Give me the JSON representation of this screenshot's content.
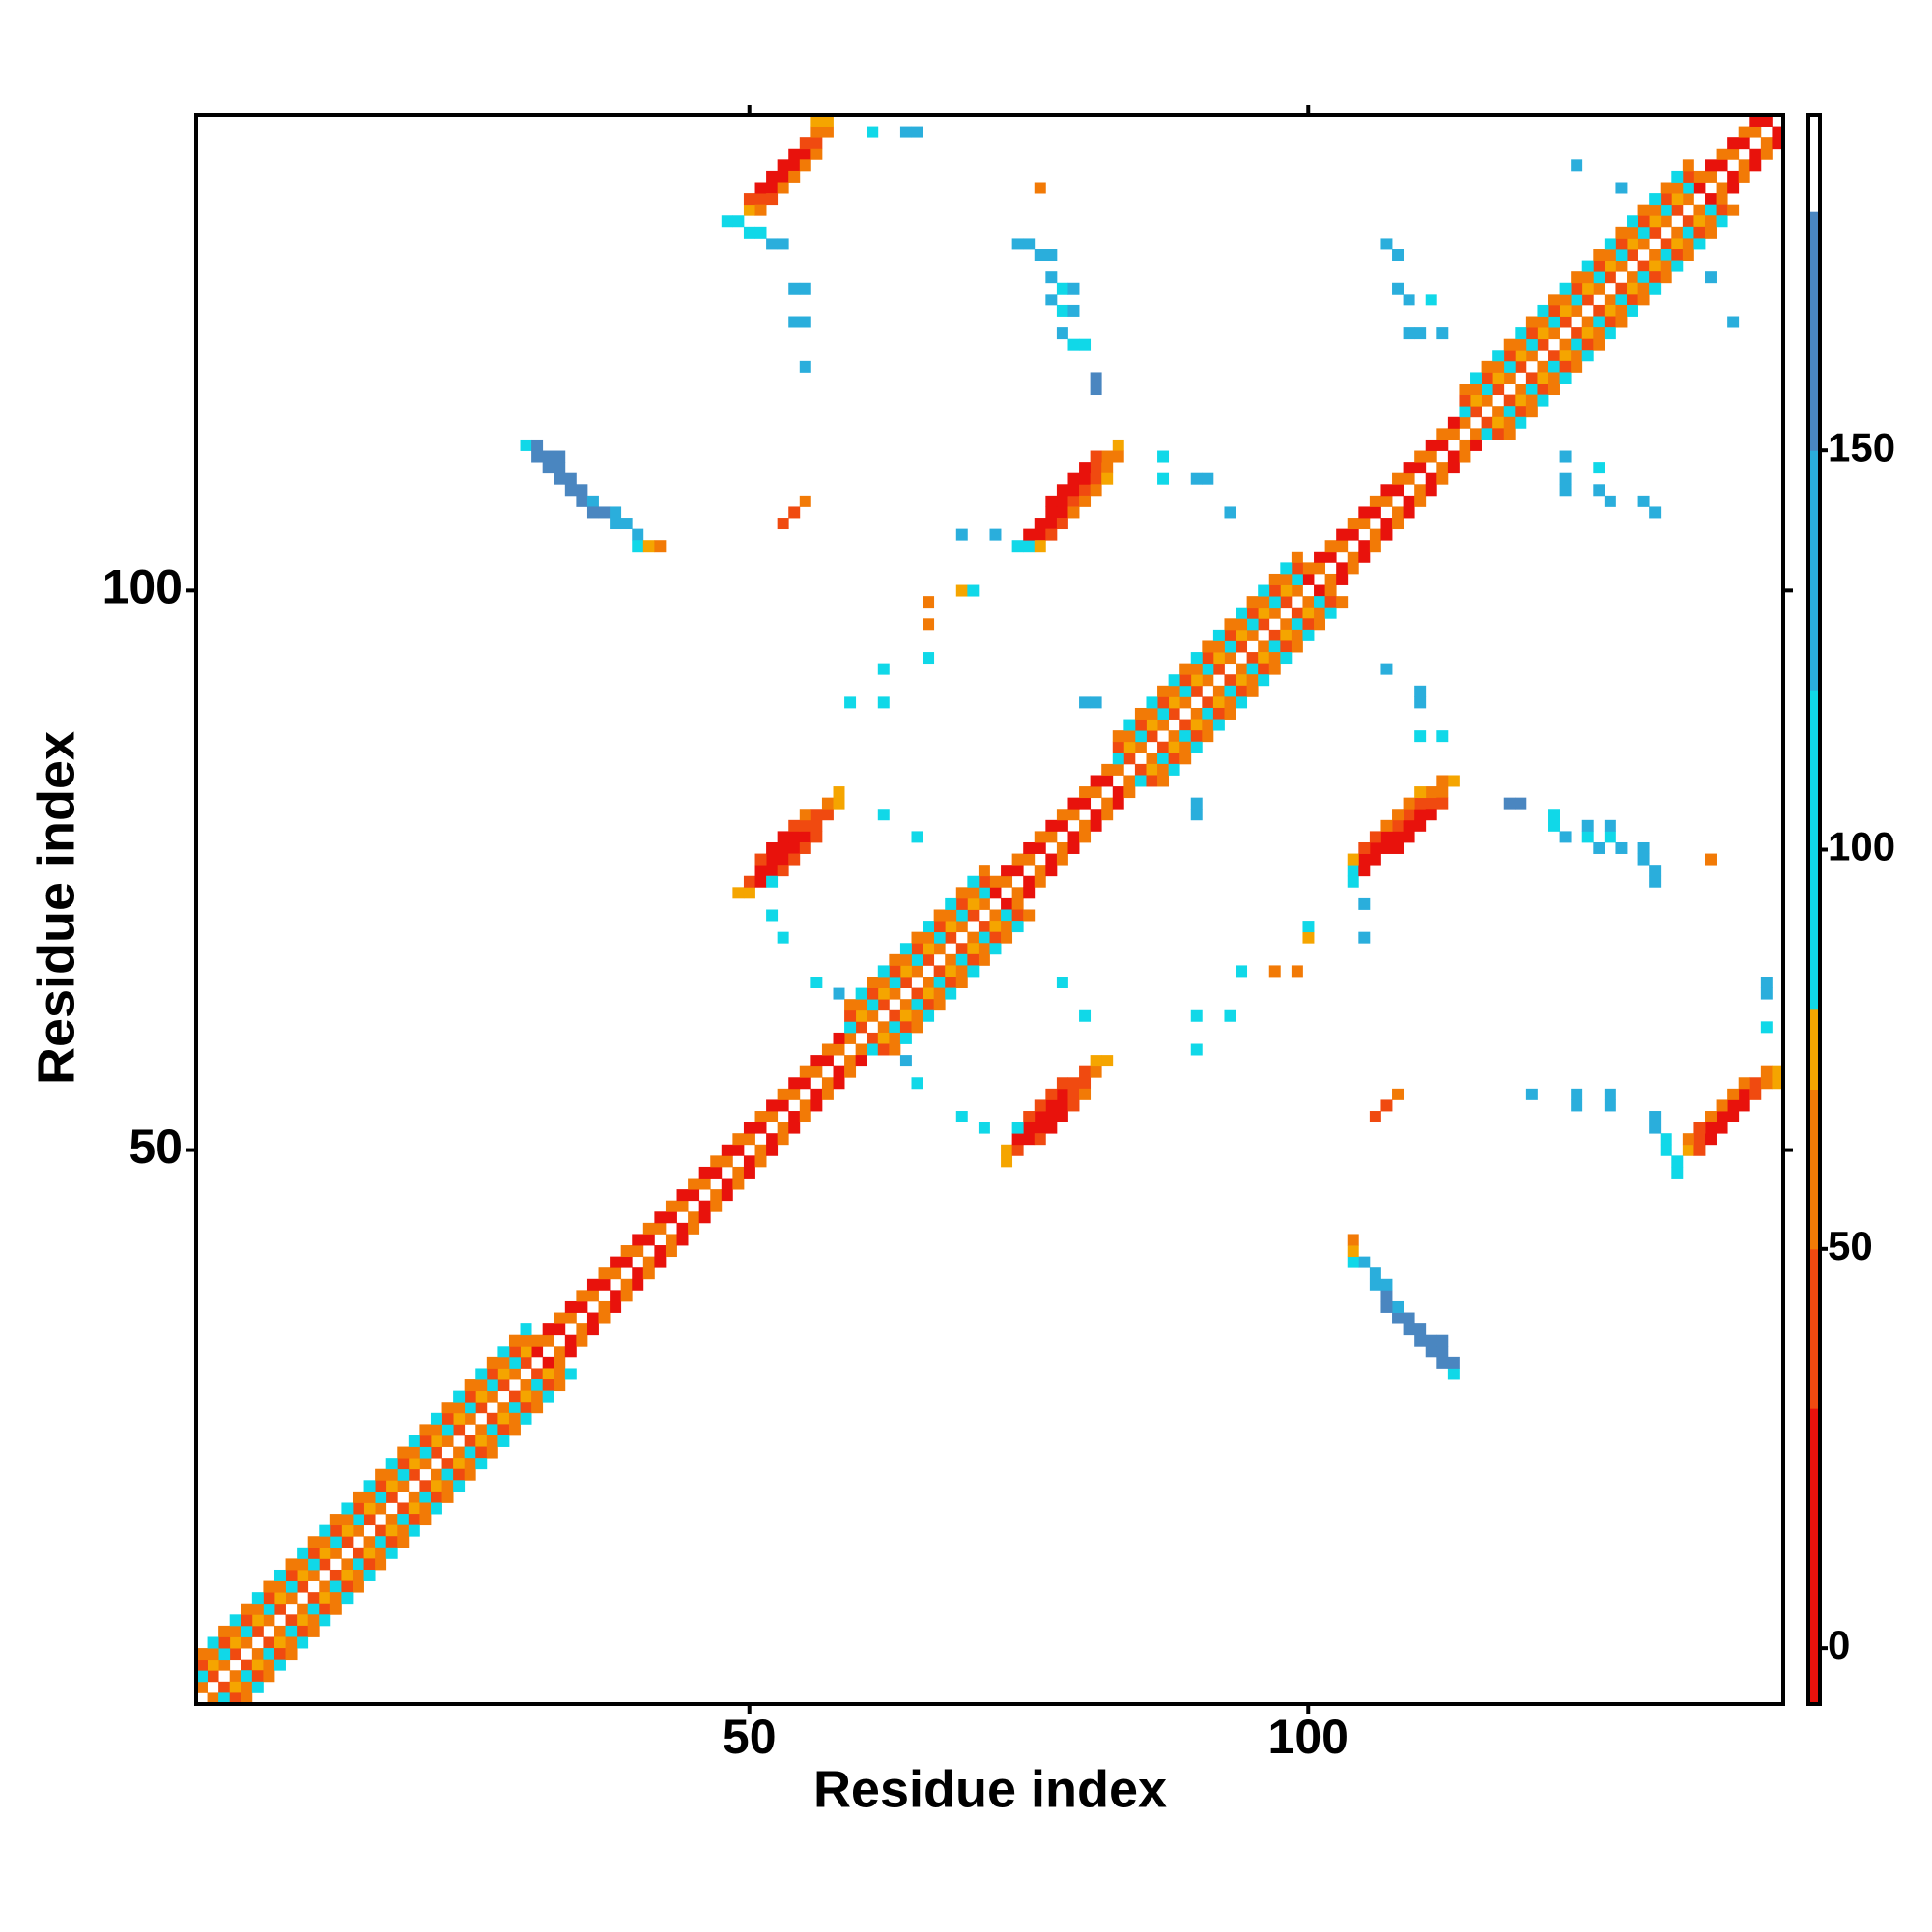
{
  "chart_data": {
    "type": "heatmap",
    "x_label": "Residue index",
    "y_label": "Residue index",
    "xlim": [
      0.5,
      142.5
    ],
    "ylim": [
      0.5,
      142.5
    ],
    "xticks": [
      50,
      100
    ],
    "yticks": [
      50,
      100
    ],
    "colorbar": {
      "lim": [
        -7,
        192
      ],
      "ticks": [
        0,
        50,
        100,
        150
      ],
      "levels": [
        {
          "from": -7,
          "to": 30,
          "color": "#e8120c"
        },
        {
          "from": 30,
          "to": 50,
          "color": "#f04a10"
        },
        {
          "from": 50,
          "to": 70,
          "color": "#f27a06"
        },
        {
          "from": 70,
          "to": 80,
          "color": "#f5a500"
        },
        {
          "from": 80,
          "to": 120,
          "color": "#10d8e8"
        },
        {
          "from": 120,
          "to": 150,
          "color": "#2aaedc"
        },
        {
          "from": 150,
          "to": 180,
          "color": "#4a86c0"
        },
        {
          "from": 180,
          "to": 192,
          "color": "#ffffff"
        }
      ]
    },
    "diagonal_bands": [
      [
        60,
        40,
        60,
        40,
        60,
        40,
        60,
        40,
        60,
        40,
        60,
        40,
        60,
        40,
        60,
        40,
        60,
        40,
        60,
        40,
        60,
        40,
        60,
        40,
        60,
        40,
        60,
        40,
        60,
        40,
        10,
        60,
        10,
        60,
        10,
        60,
        10,
        60,
        10,
        60,
        10,
        60,
        10,
        60,
        10,
        60,
        10,
        60,
        10,
        60,
        10,
        60,
        10,
        60,
        10,
        60,
        10,
        60,
        60,
        40,
        60,
        40,
        60,
        40,
        60,
        40,
        60,
        40,
        60,
        40,
        60,
        10,
        60,
        10,
        60,
        10,
        60,
        10,
        60,
        10,
        60,
        10,
        60,
        40,
        60,
        40,
        60,
        40,
        60,
        40,
        60,
        40,
        60,
        40,
        60,
        40,
        60,
        40,
        60,
        10,
        60,
        10,
        60,
        10,
        60,
        10,
        60,
        10,
        60,
        10,
        60,
        10,
        60,
        60,
        40,
        60,
        40,
        60,
        40,
        60,
        40,
        60,
        40,
        60,
        40,
        60,
        40,
        60,
        40,
        60,
        40,
        60,
        40,
        60,
        10,
        60,
        10,
        60,
        10,
        60,
        10
      ],
      [
        90,
        75,
        90,
        75,
        90,
        75,
        90,
        75,
        90,
        75,
        90,
        75,
        90,
        75,
        90,
        75,
        90,
        75,
        90,
        75,
        90,
        75,
        90,
        75,
        90,
        75,
        90,
        75,
        90,
        75,
        60,
        10,
        60,
        10,
        60,
        10,
        60,
        10,
        60,
        10,
        60,
        10,
        60,
        10,
        60,
        10,
        60,
        10,
        60,
        10,
        60,
        10,
        60,
        10,
        60,
        10,
        60,
        10,
        90,
        75,
        90,
        75,
        90,
        75,
        90,
        75,
        90,
        75,
        90,
        75,
        90,
        60,
        10,
        60,
        10,
        60,
        10,
        60,
        10,
        60,
        10,
        60,
        90,
        75,
        90,
        75,
        90,
        75,
        90,
        75,
        90,
        75,
        90,
        75,
        90,
        75,
        90,
        75,
        90,
        60,
        10,
        60,
        10,
        60,
        10,
        60,
        10,
        60,
        10,
        60,
        10,
        60,
        10,
        90,
        75,
        90,
        75,
        90,
        75,
        90,
        75,
        90,
        75,
        90,
        75,
        90,
        75,
        90,
        75,
        90,
        75,
        90,
        75,
        90,
        60,
        10,
        60,
        10,
        60,
        10
      ],
      [
        40,
        60,
        40,
        60,
        40,
        60,
        40,
        60,
        40,
        60,
        40,
        60,
        40,
        60,
        40,
        60,
        40,
        60,
        40,
        60,
        40,
        60,
        40,
        60,
        40,
        60,
        40,
        60,
        40,
        60,
        null,
        null,
        null,
        null,
        null,
        null,
        null,
        null,
        null,
        null,
        null,
        null,
        null,
        null,
        null,
        null,
        null,
        null,
        null,
        null,
        null,
        null,
        null,
        null,
        null,
        null,
        null,
        null,
        40,
        60,
        40,
        60,
        40,
        60,
        40,
        60,
        40,
        60,
        40,
        60,
        40,
        null,
        null,
        null,
        null,
        null,
        null,
        null,
        null,
        null,
        null,
        null,
        40,
        60,
        40,
        60,
        40,
        60,
        40,
        60,
        40,
        60,
        40,
        60,
        40,
        60,
        40,
        60,
        40,
        null,
        null,
        null,
        null,
        null,
        null,
        null,
        null,
        null,
        null,
        null,
        null,
        null,
        null,
        40,
        60,
        40,
        60,
        40,
        60,
        40,
        60,
        40,
        60,
        40,
        60,
        40,
        60,
        40,
        60,
        40,
        60,
        40,
        60,
        40,
        null,
        null,
        null,
        null,
        null
      ],
      [
        60,
        90,
        60,
        90,
        60,
        90,
        60,
        90,
        60,
        90,
        60,
        90,
        60,
        90,
        60,
        90,
        60,
        90,
        60,
        90,
        60,
        90,
        60,
        90,
        60,
        90,
        60,
        90,
        60,
        90,
        null,
        null,
        null,
        null,
        null,
        null,
        null,
        null,
        null,
        null,
        null,
        null,
        null,
        null,
        null,
        null,
        null,
        null,
        null,
        null,
        null,
        null,
        null,
        null,
        null,
        null,
        null,
        null,
        60,
        90,
        60,
        90,
        60,
        90,
        60,
        90,
        60,
        90,
        60,
        90,
        60,
        null,
        null,
        null,
        null,
        null,
        null,
        null,
        null,
        null,
        null,
        null,
        60,
        90,
        60,
        90,
        60,
        90,
        60,
        90,
        60,
        90,
        60,
        90,
        60,
        90,
        60,
        90,
        60,
        null,
        null,
        null,
        null,
        null,
        null,
        null,
        null,
        null,
        null,
        null,
        null,
        null,
        null,
        60,
        90,
        60,
        90,
        60,
        90,
        60,
        90,
        60,
        90,
        60,
        90,
        60,
        90,
        60,
        90,
        60,
        90,
        60,
        90,
        60,
        null,
        null,
        null,
        null
      ]
    ],
    "contacts": [
      [
        50,
        134,
        75
      ],
      [
        50,
        135,
        40
      ],
      [
        51,
        135,
        40
      ],
      [
        51,
        136,
        10
      ],
      [
        51,
        134,
        60
      ],
      [
        52,
        136,
        10
      ],
      [
        52,
        137,
        10
      ],
      [
        52,
        135,
        40
      ],
      [
        53,
        137,
        10
      ],
      [
        53,
        138,
        10
      ],
      [
        53,
        136,
        60
      ],
      [
        54,
        138,
        10
      ],
      [
        54,
        139,
        10
      ],
      [
        54,
        137,
        60
      ],
      [
        55,
        139,
        10
      ],
      [
        55,
        140,
        40
      ],
      [
        55,
        138,
        60
      ],
      [
        56,
        140,
        40
      ],
      [
        56,
        141,
        60
      ],
      [
        56,
        139,
        60
      ],
      [
        57,
        141,
        60
      ],
      [
        57,
        142,
        75
      ],
      [
        56,
        142,
        75
      ],
      [
        48,
        133,
        90
      ],
      [
        49,
        133,
        90
      ],
      [
        50,
        132,
        90
      ],
      [
        51,
        132,
        90
      ],
      [
        52,
        131,
        130
      ],
      [
        53,
        131,
        130
      ],
      [
        54,
        127,
        130
      ],
      [
        55,
        127,
        130
      ],
      [
        54,
        124,
        130
      ],
      [
        55,
        124,
        130
      ],
      [
        55,
        120,
        130
      ],
      [
        61,
        141,
        90
      ],
      [
        64,
        141,
        130
      ],
      [
        65,
        141,
        130
      ],
      [
        30,
        113,
        90
      ],
      [
        31,
        113,
        165
      ],
      [
        31,
        112,
        165
      ],
      [
        32,
        112,
        165
      ],
      [
        32,
        111,
        165
      ],
      [
        33,
        112,
        165
      ],
      [
        33,
        111,
        165
      ],
      [
        33,
        110,
        165
      ],
      [
        34,
        110,
        165
      ],
      [
        34,
        109,
        165
      ],
      [
        35,
        109,
        165
      ],
      [
        35,
        108,
        165
      ],
      [
        36,
        108,
        130
      ],
      [
        36,
        107,
        165
      ],
      [
        37,
        107,
        165
      ],
      [
        38,
        107,
        130
      ],
      [
        38,
        106,
        130
      ],
      [
        39,
        106,
        130
      ],
      [
        40,
        105,
        130
      ],
      [
        40,
        104,
        90
      ],
      [
        41,
        104,
        75
      ],
      [
        42,
        104,
        60
      ],
      [
        74,
        104,
        90
      ],
      [
        75,
        104,
        90
      ],
      [
        75,
        105,
        10
      ],
      [
        76,
        105,
        10
      ],
      [
        76,
        106,
        10
      ],
      [
        77,
        106,
        10
      ],
      [
        77,
        107,
        10
      ],
      [
        78,
        107,
        10
      ],
      [
        78,
        108,
        10
      ],
      [
        79,
        108,
        40
      ],
      [
        79,
        109,
        10
      ],
      [
        80,
        109,
        40
      ],
      [
        80,
        110,
        10
      ],
      [
        81,
        110,
        40
      ],
      [
        81,
        111,
        40
      ],
      [
        82,
        111,
        60
      ],
      [
        82,
        112,
        60
      ],
      [
        83,
        113,
        75
      ],
      [
        83,
        112,
        60
      ],
      [
        76,
        104,
        75
      ],
      [
        77,
        105,
        40
      ],
      [
        78,
        106,
        40
      ],
      [
        79,
        107,
        60
      ],
      [
        80,
        108,
        60
      ],
      [
        81,
        109,
        60
      ],
      [
        82,
        110,
        75
      ],
      [
        77,
        108,
        10
      ],
      [
        78,
        109,
        10
      ],
      [
        79,
        110,
        10
      ],
      [
        80,
        111,
        10
      ],
      [
        81,
        112,
        40
      ],
      [
        74,
        131,
        130
      ],
      [
        75,
        131,
        130
      ],
      [
        76,
        130,
        130
      ],
      [
        77,
        130,
        130
      ],
      [
        77,
        128,
        130
      ],
      [
        78,
        127,
        90
      ],
      [
        79,
        127,
        130
      ],
      [
        77,
        126,
        130
      ],
      [
        78,
        125,
        90
      ],
      [
        79,
        125,
        130
      ],
      [
        78,
        123,
        130
      ],
      [
        79,
        122,
        90
      ],
      [
        80,
        122,
        90
      ],
      [
        81,
        119,
        165
      ],
      [
        81,
        118,
        165
      ],
      [
        76,
        136,
        60
      ],
      [
        49,
        73,
        75
      ],
      [
        50,
        73,
        75
      ],
      [
        50,
        74,
        40
      ],
      [
        51,
        74,
        10
      ],
      [
        51,
        75,
        10
      ],
      [
        52,
        75,
        10
      ],
      [
        52,
        76,
        10
      ],
      [
        53,
        76,
        10
      ],
      [
        53,
        77,
        10
      ],
      [
        54,
        77,
        10
      ],
      [
        54,
        78,
        10
      ],
      [
        55,
        78,
        10
      ],
      [
        55,
        79,
        40
      ],
      [
        56,
        79,
        40
      ],
      [
        56,
        80,
        40
      ],
      [
        57,
        80,
        40
      ],
      [
        57,
        81,
        60
      ],
      [
        58,
        81,
        75
      ],
      [
        58,
        82,
        75
      ],
      [
        51,
        76,
        40
      ],
      [
        52,
        77,
        10
      ],
      [
        53,
        78,
        10
      ],
      [
        54,
        79,
        40
      ],
      [
        55,
        80,
        60
      ],
      [
        52,
        74,
        90
      ],
      [
        53,
        75,
        40
      ],
      [
        54,
        76,
        40
      ],
      [
        55,
        77,
        40
      ],
      [
        56,
        78,
        40
      ],
      [
        52,
        71,
        90
      ],
      [
        53,
        69,
        90
      ],
      [
        56,
        65,
        90
      ],
      [
        58,
        64,
        130
      ],
      [
        65,
        78,
        90
      ],
      [
        62,
        80,
        90
      ],
      [
        59,
        90,
        90
      ],
      [
        62,
        90,
        90
      ],
      [
        62,
        93,
        90
      ],
      [
        66,
        94,
        90
      ],
      [
        66,
        97,
        60
      ],
      [
        66,
        99,
        60
      ],
      [
        69,
        100,
        75
      ],
      [
        70,
        100,
        90
      ],
      [
        69,
        105,
        130
      ],
      [
        72,
        105,
        130
      ],
      [
        53,
        106,
        40
      ],
      [
        54,
        107,
        40
      ],
      [
        55,
        108,
        60
      ],
      [
        87,
        112,
        90
      ],
      [
        87,
        110,
        90
      ],
      [
        90,
        110,
        130
      ],
      [
        91,
        110,
        130
      ],
      [
        93,
        107,
        130
      ],
      [
        80,
        90,
        130
      ],
      [
        81,
        90,
        130
      ],
      [
        107,
        131,
        130
      ],
      [
        108,
        130,
        130
      ],
      [
        108,
        127,
        130
      ],
      [
        109,
        126,
        130
      ],
      [
        111,
        126,
        90
      ],
      [
        109,
        123,
        130
      ],
      [
        110,
        123,
        130
      ],
      [
        112,
        123,
        130
      ],
      [
        124,
        138,
        130
      ],
      [
        128,
        136,
        130
      ]
    ]
  }
}
